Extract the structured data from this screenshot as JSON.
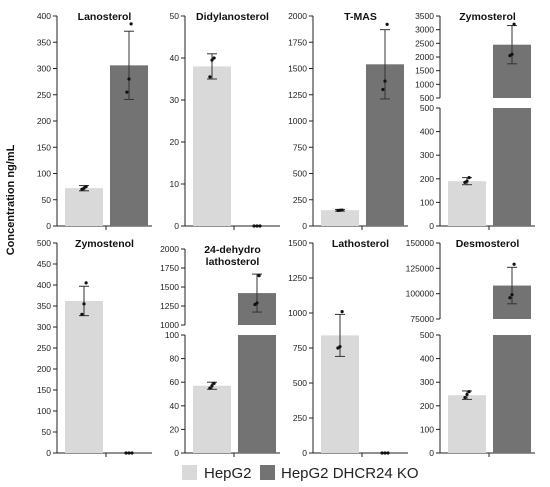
{
  "figure": {
    "ylabel": "Concentration ng/mL",
    "legend": [
      {
        "label": "HepG2",
        "color": "#d9d9d9"
      },
      {
        "label": "HepG2 DHCR24 KO",
        "color": "#737373"
      }
    ]
  },
  "chart_data": [
    {
      "type": "bar",
      "title": "Lanosterol",
      "categories": [
        "HepG2",
        "HepG2 DHCR24 KO"
      ],
      "values": [
        72,
        306
      ],
      "errors": [
        5,
        65
      ],
      "ylim": [
        0,
        400
      ],
      "yticks": [
        0,
        50,
        100,
        150,
        200,
        250,
        300,
        350,
        400
      ],
      "points": [
        [
          70,
          72,
          75
        ],
        [
          255,
          280,
          385
        ]
      ]
    },
    {
      "type": "bar",
      "title": "Didylanosterol",
      "categories": [
        "HepG2",
        "HepG2 DHCR24 KO"
      ],
      "values": [
        38,
        0
      ],
      "errors": [
        3,
        0
      ],
      "ylim": [
        0,
        50
      ],
      "yticks": [
        0,
        10,
        20,
        30,
        40,
        50
      ],
      "points": [
        [
          35.5,
          39.5,
          40
        ],
        [
          0,
          0,
          0
        ]
      ]
    },
    {
      "type": "bar",
      "title": "T-MAS",
      "categories": [
        "HepG2",
        "HepG2 DHCR24 KO"
      ],
      "values": [
        150,
        1540
      ],
      "errors": [
        8,
        330
      ],
      "ylim": [
        0,
        2000
      ],
      "yticks": [
        0,
        250,
        500,
        750,
        1000,
        1250,
        1500,
        1750,
        2000
      ],
      "points": [
        [
          148,
          150,
          152
        ],
        [
          1300,
          1380,
          1920
        ]
      ]
    },
    {
      "type": "bar",
      "title": "Zymosterol",
      "categories": [
        "HepG2",
        "HepG2 DHCR24 KO"
      ],
      "values": [
        190,
        2450
      ],
      "errors": [
        15,
        700
      ],
      "segments": [
        {
          "ylim": [
            0,
            500
          ],
          "yticks": [
            0,
            100,
            200,
            300,
            400,
            500
          ]
        },
        {
          "ylim": [
            500,
            3500
          ],
          "yticks": [
            500,
            1000,
            1500,
            2000,
            2500,
            3000,
            3500
          ]
        }
      ],
      "points": [
        [
          185,
          190,
          205
        ],
        [
          2050,
          2100,
          3200
        ]
      ]
    },
    {
      "type": "bar",
      "title": "Zymostenol",
      "categories": [
        "HepG2",
        "HepG2 DHCR24 KO"
      ],
      "values": [
        362,
        0
      ],
      "errors": [
        35,
        0
      ],
      "ylim": [
        0,
        500
      ],
      "yticks": [
        0,
        50,
        100,
        150,
        200,
        250,
        300,
        350,
        400,
        450,
        500
      ],
      "points": [
        [
          330,
          355,
          405
        ],
        [
          0,
          0,
          0
        ]
      ]
    },
    {
      "type": "bar",
      "title": "24-dehydro lathosterol",
      "title_lines": [
        "24-dehydro",
        "lathosterol"
      ],
      "categories": [
        "HepG2",
        "HepG2 DHCR24 KO"
      ],
      "values": [
        57,
        1420
      ],
      "errors": [
        3,
        250
      ],
      "segments": [
        {
          "ylim": [
            0,
            100
          ],
          "yticks": [
            0,
            20,
            40,
            60,
            80,
            100
          ]
        },
        {
          "ylim": [
            1000,
            2000
          ],
          "yticks": [
            1000,
            1250,
            1500,
            1750,
            2000
          ]
        }
      ],
      "points": [
        [
          55,
          57,
          59
        ],
        [
          1270,
          1290,
          1650
        ]
      ]
    },
    {
      "type": "bar",
      "title": "Lathosterol",
      "categories": [
        "HepG2",
        "HepG2 DHCR24 KO"
      ],
      "values": [
        840,
        0
      ],
      "errors": [
        150,
        0
      ],
      "ylim": [
        0,
        1500
      ],
      "yticks": [
        0,
        250,
        500,
        750,
        1000,
        1250,
        1500
      ],
      "points": [
        [
          750,
          760,
          1010
        ],
        [
          0,
          0,
          0
        ]
      ]
    },
    {
      "type": "bar",
      "title": "Desmosterol",
      "categories": [
        "HepG2",
        "HepG2 DHCR24 KO"
      ],
      "values": [
        245,
        108000
      ],
      "errors": [
        18,
        18000
      ],
      "segments": [
        {
          "ylim": [
            0,
            500
          ],
          "yticks": [
            0,
            100,
            200,
            300,
            400,
            500
          ]
        },
        {
          "ylim": [
            75000,
            150000
          ],
          "yticks": [
            75000,
            100000,
            125000,
            150000
          ]
        }
      ],
      "points": [
        [
          235,
          248,
          260
        ],
        [
          96000,
          99000,
          129000
        ]
      ]
    }
  ]
}
